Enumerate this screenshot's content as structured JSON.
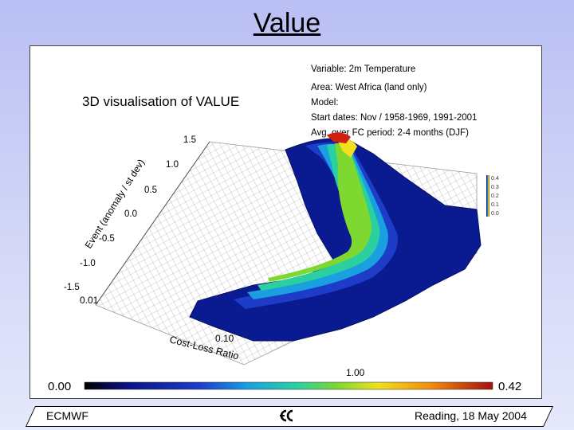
{
  "slide": {
    "title": "Value"
  },
  "figure": {
    "heading": "3D visualisation of VALUE",
    "info_lines": [
      "Variable: 2m Temperature",
      "Area: West Africa (land only)",
      "Model:",
      "Start dates: Nov / 1958-1969, 1991-2001",
      "Avg. over FC period: 2-4 months (DJF)"
    ],
    "event_axis": {
      "label": "Event (anomaly / st dev)",
      "ticks": [
        "1.5",
        "1.0",
        "0.5",
        "0.0",
        "-0.5",
        "-1.0",
        "-1.5"
      ]
    },
    "cost_loss_axis": {
      "label": "Cost-Loss Ratio",
      "ticks": [
        "0.01",
        "0.10",
        "1.00"
      ]
    },
    "mini_scale_ticks": [
      "0.4",
      "0.3",
      "0.2",
      "0.1",
      "0.0"
    ],
    "colorbar": {
      "min_label": "0.00",
      "max_label": "0.42"
    },
    "palette": [
      "#0a1280",
      "#1d3cc8",
      "#1aa0e0",
      "#2ad0a0",
      "#7ed830",
      "#f0e020",
      "#f08a10",
      "#d02010"
    ]
  },
  "footer": {
    "left_text": "ECMWF",
    "right_text": "Reading, 18 May 2004"
  }
}
